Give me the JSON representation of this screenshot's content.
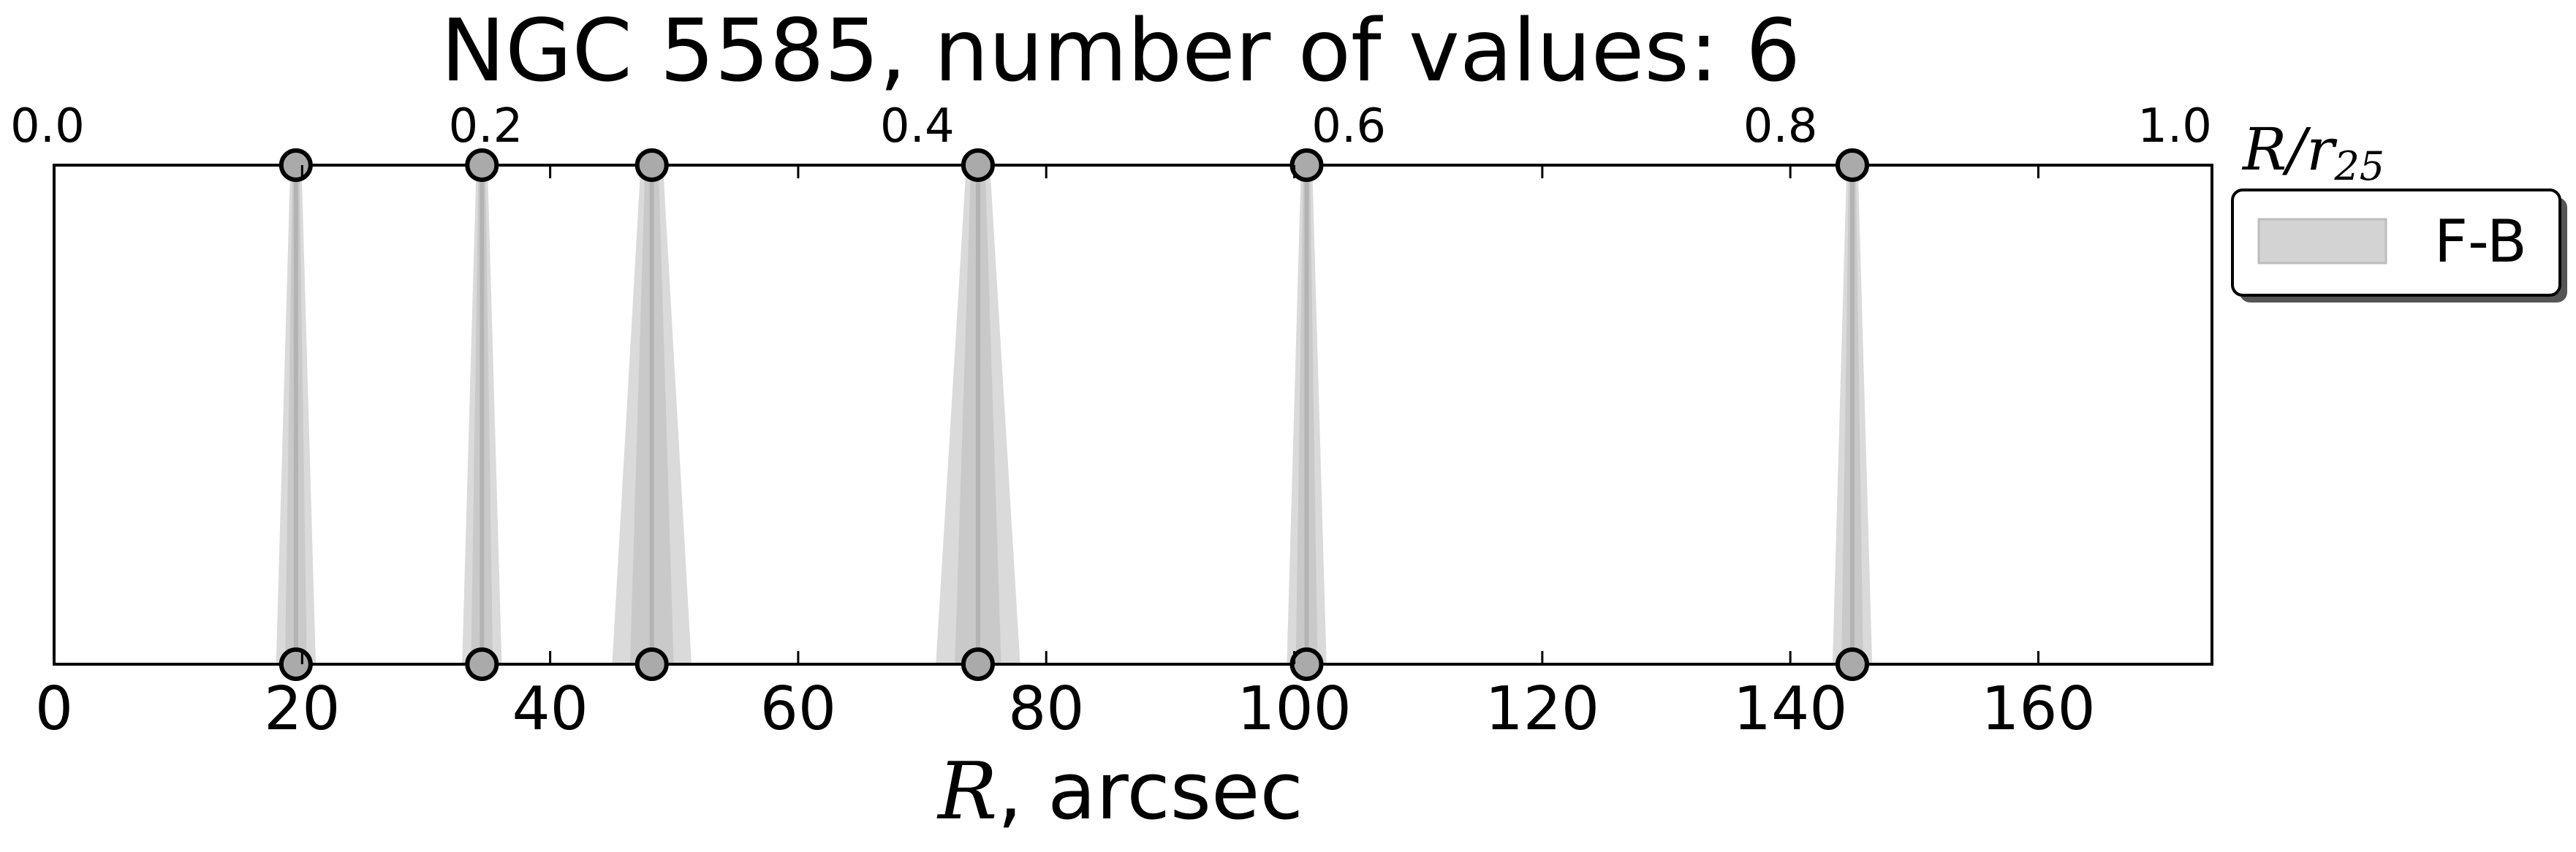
{
  "chart_data": {
    "type": "scatter",
    "title": "NGC 5585, number of values: 6",
    "xlabel": {
      "symbol": "R",
      "rest": ", arcsec"
    },
    "x_range": [
      0,
      174
    ],
    "x_ticks": [
      0,
      20,
      40,
      60,
      80,
      100,
      120,
      140,
      160
    ],
    "top_axis": {
      "label": {
        "symbol": "R/r",
        "subscript": "25"
      },
      "range": [
        0.0,
        1.0
      ],
      "ticks": [
        "0.0",
        "0.2",
        "0.4",
        "0.6",
        "0.8",
        "1.0"
      ]
    },
    "y_ticks_shown": false,
    "grid": false,
    "legend": {
      "placement": "outside right, top",
      "entries": [
        "F-B"
      ]
    },
    "series": [
      {
        "name": "F-B",
        "color": "#b3b3b3",
        "fill": "#d3d3d3",
        "marker": "circle",
        "points": [
          {
            "x": 19.5,
            "spread": 1.6
          },
          {
            "x": 34.5,
            "spread": 1.6
          },
          {
            "x": 48.2,
            "spread": 3.2
          },
          {
            "x": 74.5,
            "spread": 3.4
          },
          {
            "x": 101.0,
            "spread": 1.6
          },
          {
            "x": 145.0,
            "spread": 1.6
          }
        ]
      }
    ],
    "colors": {
      "axes": "#000000",
      "marker_face": "#aaaaaa",
      "marker_edge": "#000000"
    }
  }
}
